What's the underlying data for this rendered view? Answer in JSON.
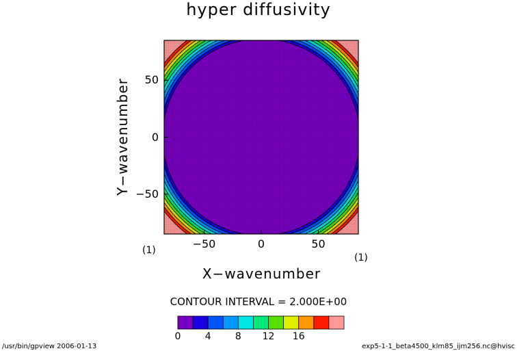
{
  "chart_data": {
    "type": "heatmap",
    "title": "hyper diffusivity",
    "xlabel": "X−wavenumber",
    "ylabel": "Y−wavenumber",
    "xlim": [
      -85,
      85
    ],
    "ylim": [
      -85,
      85
    ],
    "x_ticks": [
      {
        "value": -50,
        "label": "−50"
      },
      {
        "value": 0,
        "label": "0"
      },
      {
        "value": 50,
        "label": "50"
      }
    ],
    "y_ticks": [
      {
        "value": 50,
        "label": "50"
      },
      {
        "value": 0,
        "label": "0"
      },
      {
        "value": -50,
        "label": "−50"
      }
    ],
    "x_unit": "(1)",
    "y_unit": "(1)",
    "contour_interval_text": "CONTOUR INTERVAL = 2.000E+00",
    "contour_interval": 2.0,
    "levels": [
      0,
      2,
      4,
      6,
      8,
      10,
      12,
      14,
      16,
      18,
      20
    ],
    "colorbar_labels": [
      {
        "value": 0,
        "label": "0"
      },
      {
        "value": 4,
        "label": "4"
      },
      {
        "value": 8,
        "label": "8"
      },
      {
        "value": 12,
        "label": "12"
      },
      {
        "value": 16,
        "label": "16"
      }
    ],
    "colors": [
      "#7a00c4",
      "#1a00e0",
      "#0055ff",
      "#0099ff",
      "#00e6e6",
      "#00e87a",
      "#55e000",
      "#e0f000",
      "#ff9900",
      "#ff1a00",
      "#ff9999"
    ],
    "grid": true,
    "legend_placement": "bottom"
  },
  "footer": {
    "left": "/usr/bin/gpview  2006-01-13",
    "right": "exp5-1-1_beta4500_klm85_ijm256.nc@hvisc"
  }
}
